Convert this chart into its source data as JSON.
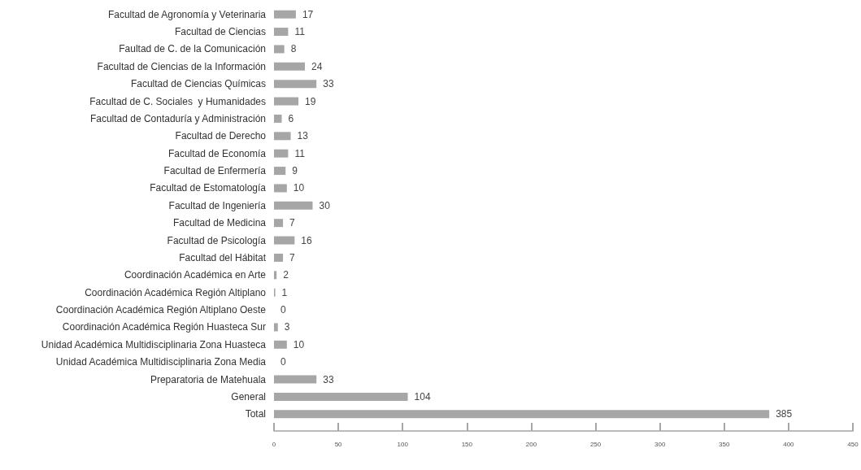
{
  "chart_data": {
    "type": "bar",
    "orientation": "horizontal",
    "categories": [
      "Facultad de Agronomía y Veterinaria",
      "Facultad de Ciencias",
      "Faultad de C. de la Comunicación",
      "Facultad de Ciencias de la Información",
      "Facultad de Ciencias Químicas",
      "Facultad de C. Sociales  y Humanidades",
      "Facultad de Contaduría y Administración",
      "Facultad de Derecho",
      "Facultad de Economía",
      "Facultad de Enfermería",
      "Facultad de Estomatología",
      "Facultad de Ingeniería",
      "Facultad de Medicina",
      "Facultad de Psicología",
      "Facultad del Hábitat",
      "Coordinación Académica en Arte",
      "Coordinación Académica Región Altiplano",
      "Coordinación Académica Región Altiplano Oeste",
      "Coordinación Académica Región Huasteca Sur",
      "Unidad Académica Multidisciplinaria Zona Huasteca",
      "Unidad Académica Multidisciplinaria Zona Media",
      "Preparatoria de Matehuala",
      "General",
      "Total"
    ],
    "values": [
      17,
      11,
      8,
      24,
      33,
      19,
      6,
      13,
      11,
      9,
      10,
      30,
      7,
      16,
      7,
      2,
      1,
      0,
      3,
      10,
      0,
      33,
      104,
      385
    ],
    "data_labels": true,
    "color": "#a6a6a6",
    "xlim": [
      0,
      450
    ],
    "xticks": [
      0,
      50,
      100,
      150,
      200,
      250,
      300,
      350,
      400,
      450
    ],
    "grid": false
  }
}
